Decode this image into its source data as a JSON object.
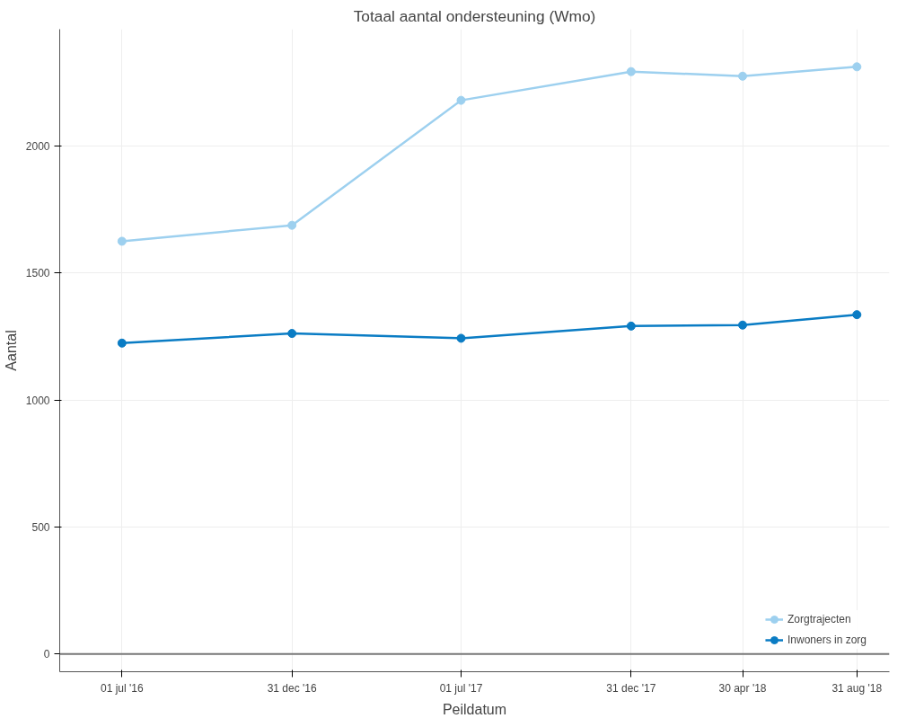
{
  "chart_data": {
    "type": "line",
    "title": "Totaal aantal ondersteuning (Wmo)",
    "xlabel": "Peildatum",
    "ylabel": "Aantal",
    "x": [
      "2016-07-01",
      "2016-12-31",
      "2017-07-01",
      "2017-12-31",
      "2018-04-30",
      "2018-08-31"
    ],
    "series": [
      {
        "name": "Zorgtrajecten",
        "color": "#9dd0ef",
        "values": [
          1625,
          1688,
          2180,
          2293,
          2275,
          2312
        ]
      },
      {
        "name": "Inwoners in zorg",
        "color": "#0a7cc4",
        "values": [
          1224,
          1262,
          1243,
          1291,
          1295,
          1336
        ]
      }
    ],
    "xlim": [
      "2016-04-25",
      "2018-10-05"
    ],
    "ylim": [
      -70,
      2460
    ],
    "xticks": [
      {
        "value": "2016-07-01",
        "label": "01 jul '16"
      },
      {
        "value": "2016-12-31",
        "label": "31 dec '16"
      },
      {
        "value": "2017-07-01",
        "label": "01 jul '17"
      },
      {
        "value": "2017-12-31",
        "label": "31 dec '17"
      },
      {
        "value": "2018-04-30",
        "label": "30 apr '18"
      },
      {
        "value": "2018-08-31",
        "label": "31 aug '18"
      }
    ],
    "yticks": [
      0,
      500,
      1000,
      1500,
      2000
    ],
    "ref_lines": [
      {
        "axis": "y",
        "value": 0,
        "color": "#777777"
      }
    ],
    "grid": true,
    "legend": "bottom right",
    "marker": "circle",
    "line_style": "solid"
  }
}
